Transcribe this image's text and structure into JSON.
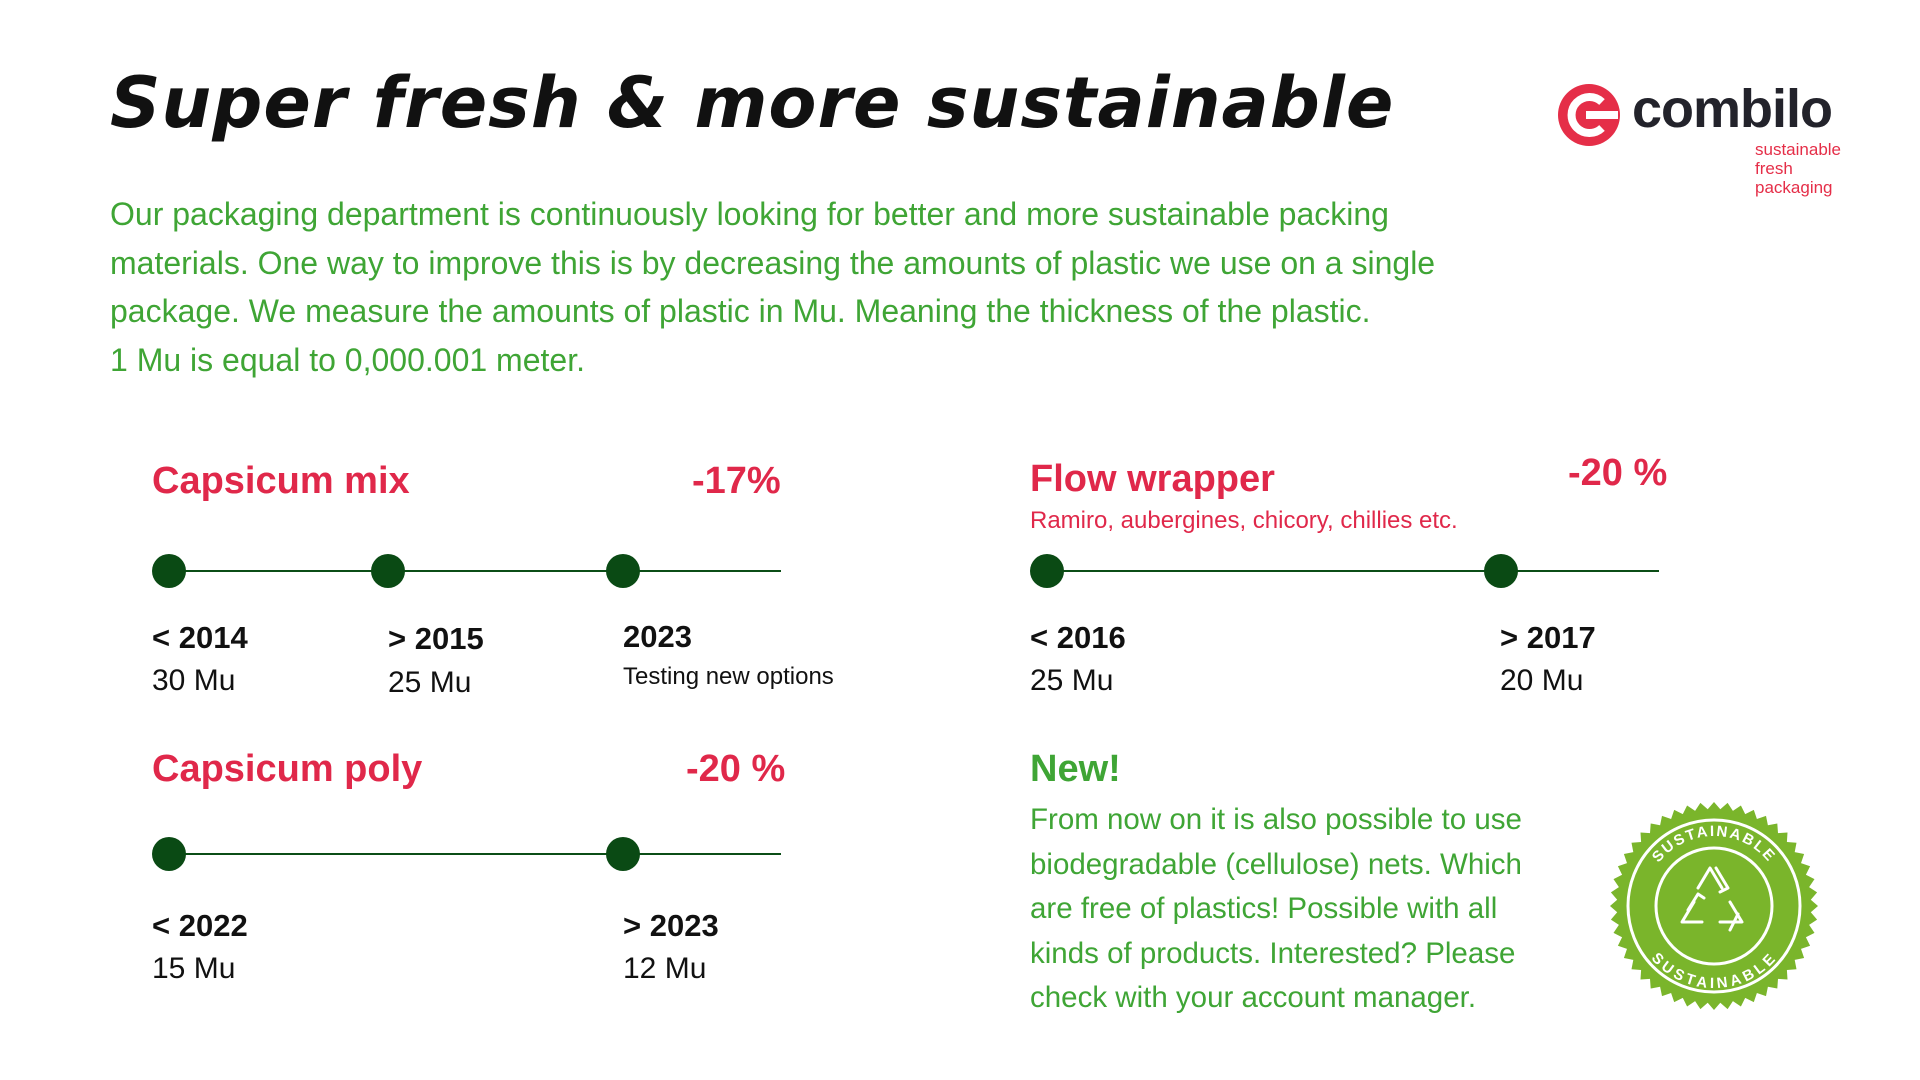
{
  "header": {
    "title": "Super fresh & more sustainable",
    "intro_lines": [
      "Our packaging department is continuously looking for better and more sustainable packing",
      "materials. One way to improve this is by decreasing the amounts of plastic we use on a single",
      "package. We measure the amounts of plastic in Mu. Meaning the thickness of the plastic.",
      "1 Mu is equal to 0,000.001 meter."
    ]
  },
  "logo": {
    "word": "combilo",
    "tagline": [
      "sustainable",
      "fresh",
      "packaging"
    ],
    "icon": "combilo-c-logo-icon"
  },
  "capsicum_mix": {
    "title": "Capsicum mix",
    "reduction": "-17%",
    "points": [
      {
        "label": "< 2014",
        "value": "30 Mu"
      },
      {
        "label": "> 2015",
        "value": "25 Mu"
      },
      {
        "label": "2023",
        "value": "Testing new options"
      }
    ]
  },
  "flow_wrapper": {
    "title": "Flow wrapper",
    "subtitle": "Ramiro, aubergines, chicory, chillies etc.",
    "reduction": "-20 %",
    "points": [
      {
        "label": "< 2016",
        "value": "25 Mu"
      },
      {
        "label": "> 2017",
        "value": "20 Mu"
      }
    ]
  },
  "capsicum_poly": {
    "title": "Capsicum poly",
    "reduction": "-20 %",
    "points": [
      {
        "label": "< 2022",
        "value": "15 Mu"
      },
      {
        "label": "> 2023",
        "value": "12 Mu"
      }
    ]
  },
  "new_section": {
    "title": "New!",
    "lines": [
      "From now on it is also possible to use",
      "biodegradable (cellulose) nets. Which",
      "are free of plastics! Possible with all",
      "kinds of products. Interested? Please",
      "check with your account manager."
    ]
  },
  "badge": {
    "top_text": "SUSTAINABLE",
    "bottom_text": "SUSTAINABLE",
    "icon": "recycle-icon"
  },
  "colors": {
    "green_text": "#3fa535",
    "red_accent": "#e0284a",
    "timeline_dark_green": "#0a4a14",
    "badge_green": "#7ab52b",
    "logo_dark": "#23232b"
  }
}
